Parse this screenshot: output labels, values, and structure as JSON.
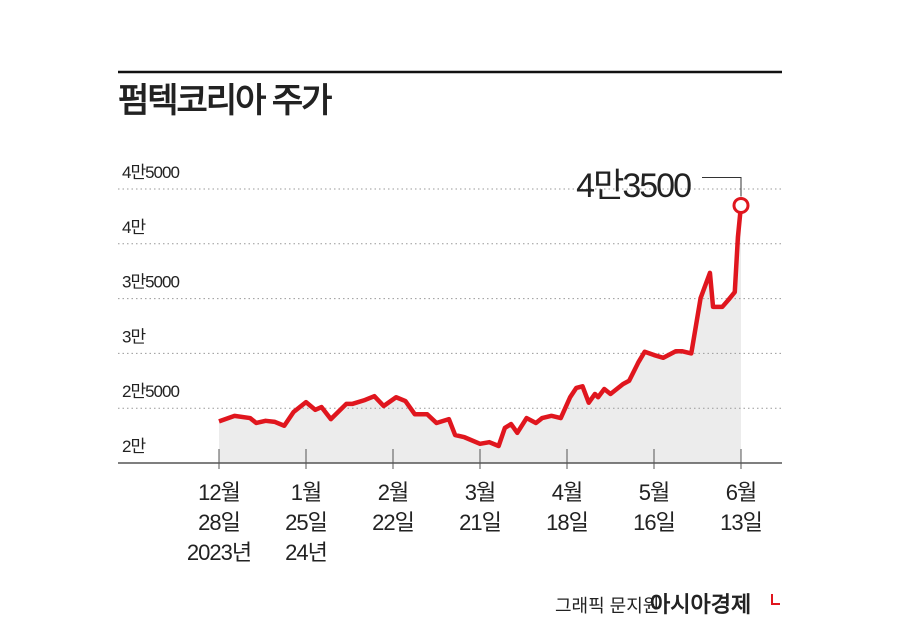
{
  "chart_data": {
    "type": "line",
    "title": "펌텍코리아 주가",
    "annotation": "4만3500",
    "credit": "그래픽 문지원",
    "brand": "아시아경제",
    "x": [
      0,
      5,
      10,
      12,
      15,
      18,
      21,
      24,
      28,
      31,
      33,
      36,
      41,
      43,
      47,
      50,
      53,
      57,
      60,
      63,
      67,
      70,
      74,
      76,
      79,
      84,
      87,
      90,
      92,
      94,
      96,
      99,
      102,
      104,
      107,
      110,
      113,
      115,
      117,
      119,
      121,
      122,
      124,
      126,
      130,
      132,
      135,
      137,
      140,
      143,
      147,
      149,
      152,
      155,
      158,
      159,
      162,
      164,
      166,
      167,
      168
    ],
    "series": [
      {
        "name": "펌텍코리아",
        "color": "#e0161e",
        "values": [
          23800,
          24300,
          24100,
          23650,
          23850,
          23750,
          23400,
          24650,
          25550,
          24850,
          25100,
          24000,
          25400,
          25400,
          25750,
          26100,
          25200,
          26000,
          25650,
          24450,
          24450,
          23650,
          24000,
          22550,
          22350,
          21750,
          21900,
          21550,
          23200,
          23550,
          22750,
          24100,
          23650,
          24100,
          24300,
          24100,
          26000,
          26850,
          27000,
          25500,
          26300,
          26000,
          26750,
          26300,
          27200,
          27500,
          29200,
          30150,
          29850,
          29600,
          30200,
          30200,
          30000,
          35050,
          37350,
          34250,
          34250,
          34900,
          35600,
          40600,
          43500
        ]
      }
    ],
    "xlim": [
      0,
      168
    ],
    "xticks": [
      {
        "value": 0,
        "label": [
          "12월",
          "28일",
          "2023년"
        ]
      },
      {
        "value": 28,
        "label": [
          "1월",
          "25일",
          "24년"
        ]
      },
      {
        "value": 56,
        "label": [
          "2월",
          "22일"
        ]
      },
      {
        "value": 84,
        "label": [
          "3월",
          "21일"
        ]
      },
      {
        "value": 112,
        "label": [
          "4월",
          "18일"
        ]
      },
      {
        "value": 140,
        "label": [
          "5월",
          "16일"
        ]
      },
      {
        "value": 168,
        "label": [
          "6월",
          "13일"
        ]
      }
    ],
    "ylim": [
      20000,
      45000
    ],
    "yticks": [
      {
        "value": 20000,
        "label": "2만"
      },
      {
        "value": 25000,
        "label": "2만5000"
      },
      {
        "value": 30000,
        "label": "3만"
      },
      {
        "value": 35000,
        "label": "3만5000"
      },
      {
        "value": 40000,
        "label": "4만"
      },
      {
        "value": 45000,
        "label": "4만5000"
      }
    ],
    "grid": true
  }
}
